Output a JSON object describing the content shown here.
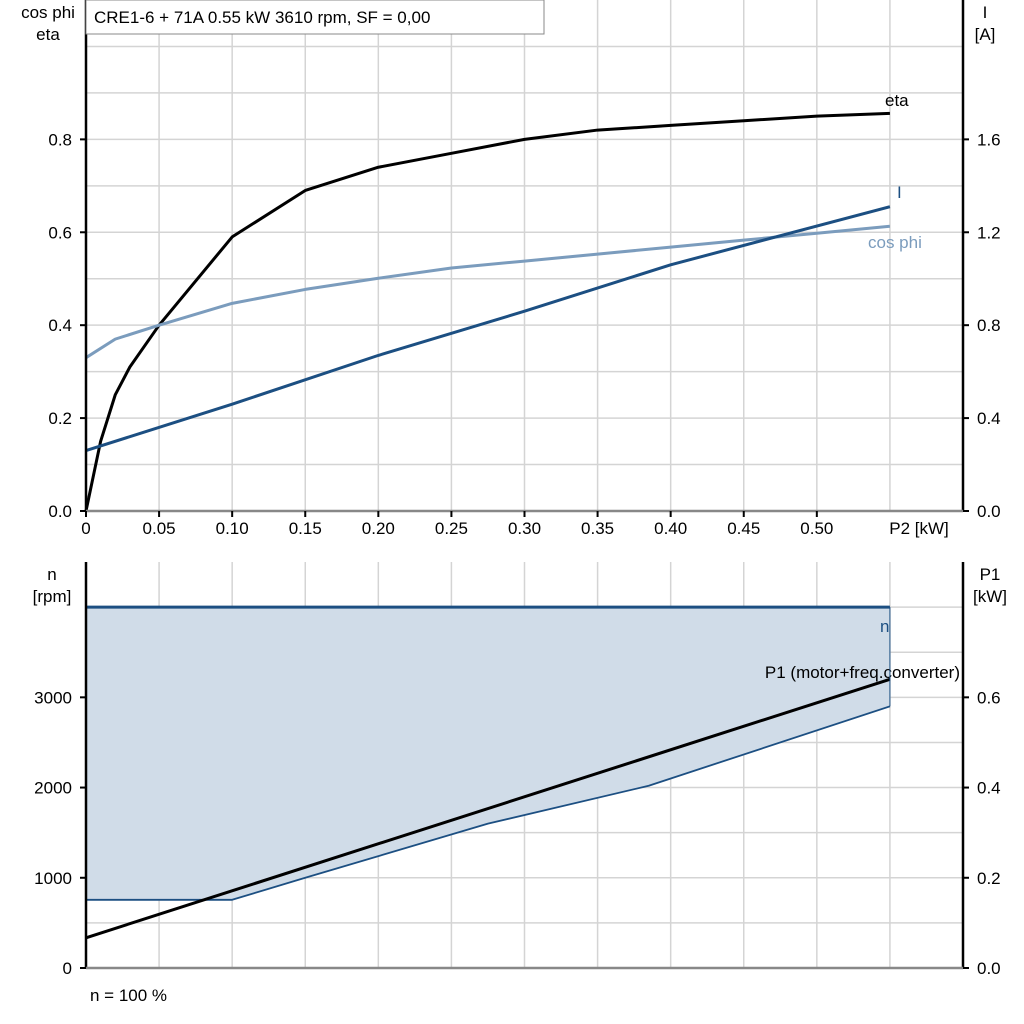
{
  "chart_data": [
    {
      "type": "line",
      "title": "CRE1-6 + 71A   0.55 kW   3610 rpm, SF = 0,00",
      "xlabel": "P2 [kW]",
      "ylabel_left": [
        "cos phi",
        "eta"
      ],
      "ylabel_right": [
        "I",
        "[A]"
      ],
      "xlim": [
        0,
        0.6
      ],
      "ylim_left": [
        0,
        1.1
      ],
      "ylim_right": [
        0,
        2.2
      ],
      "grid": true,
      "x_ticks": [
        "0",
        "0.05",
        "0.10",
        "0.15",
        "0.20",
        "0.25",
        "0.30",
        "0.35",
        "0.40",
        "0.45",
        "0.50"
      ],
      "y_ticks_left": [
        "0.0",
        "0.2",
        "0.4",
        "0.6",
        "0.8"
      ],
      "y_ticks_right": [
        "0.0",
        "0.4",
        "0.8",
        "1.2",
        "1.6"
      ],
      "series": [
        {
          "name": "eta",
          "axis": "left",
          "color": "#000000",
          "x": [
            0,
            0.01,
            0.02,
            0.03,
            0.05,
            0.1,
            0.15,
            0.2,
            0.25,
            0.3,
            0.35,
            0.4,
            0.45,
            0.5,
            0.55
          ],
          "y": [
            0,
            0.15,
            0.25,
            0.31,
            0.4,
            0.59,
            0.69,
            0.74,
            0.77,
            0.8,
            0.82,
            0.83,
            0.84,
            0.85,
            0.856
          ]
        },
        {
          "name": "cos phi",
          "axis": "left",
          "color": "#7b9cbd",
          "x": [
            0,
            0.02,
            0.05,
            0.1,
            0.15,
            0.2,
            0.25,
            0.3,
            0.35,
            0.4,
            0.45,
            0.5,
            0.55
          ],
          "y": [
            0.33,
            0.37,
            0.4,
            0.447,
            0.477,
            0.501,
            0.523,
            0.538,
            0.553,
            0.568,
            0.583,
            0.598,
            0.613
          ]
        },
        {
          "name": "I",
          "axis": "right",
          "color": "#1c4f82",
          "x": [
            0,
            0.1,
            0.2,
            0.3,
            0.4,
            0.55
          ],
          "y": [
            0.26,
            0.46,
            0.67,
            0.86,
            1.06,
            1.31
          ]
        }
      ]
    },
    {
      "type": "line",
      "xlim": [
        0,
        0.6
      ],
      "ylabel_left": [
        "n",
        "[rpm]"
      ],
      "ylabel_right": [
        "P1",
        "[kW]"
      ],
      "ylim_left": [
        0,
        4500
      ],
      "ylim_right": [
        0,
        0.9
      ],
      "grid": true,
      "y_ticks_left": [
        "0",
        "1000",
        "2000",
        "3000"
      ],
      "y_ticks_right": [
        "0.0",
        "0.2",
        "0.4",
        "0.6"
      ],
      "footnote": "n = 100 %",
      "fill_color": "#d0dce8",
      "series": [
        {
          "name": "n",
          "axis": "left",
          "color": "#1c4f82",
          "x": [
            0,
            0.55
          ],
          "y": [
            4000,
            4000
          ]
        },
        {
          "name": "",
          "axis": "left",
          "color": "#1c4f82",
          "x": [
            0,
            0.1,
            0.15,
            0.275,
            0.385,
            0.55
          ],
          "y": [
            756,
            756,
            1000,
            1600,
            2020,
            2900
          ]
        },
        {
          "name": "P1 (motor+freq.converter)",
          "axis": "right",
          "color": "#000000",
          "x": [
            0,
            0.55
          ],
          "y": [
            0.067,
            0.64
          ]
        }
      ]
    }
  ]
}
